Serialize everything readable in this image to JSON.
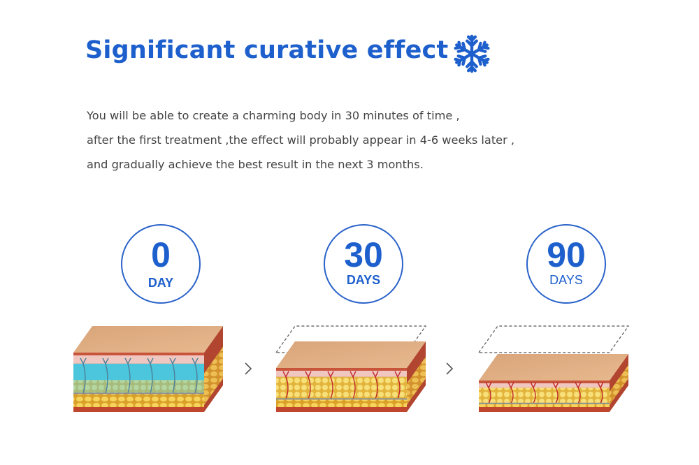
{
  "header": {
    "title": "Significant curative effect",
    "icon": "snowflake-icon",
    "accent_color": "#1d5fcc"
  },
  "description": {
    "lines": [
      "You will be able to create a charming body in 30 minutes of time ,",
      "after the first treatment ,the effect will probably appear in 4-6 weeks later ,",
      "and gradually achieve the best result in the next 3 months."
    ]
  },
  "stages": [
    {
      "number": "0",
      "unit": "DAY"
    },
    {
      "number": "30",
      "unit": "DAYS"
    },
    {
      "number": "90",
      "unit": "DAYS"
    }
  ],
  "arrow_icon": "chevron-right-icon"
}
